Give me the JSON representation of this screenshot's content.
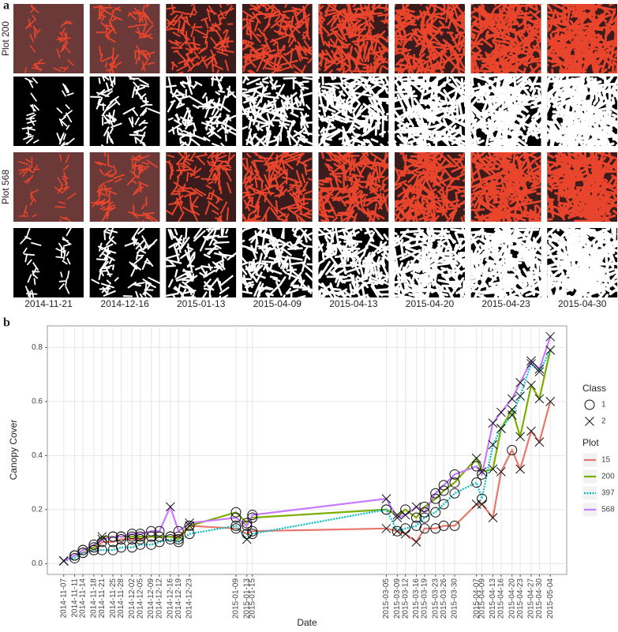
{
  "panel_a": {
    "label": "a",
    "rows": [
      "Plot 200",
      "Plot 568"
    ],
    "dates": [
      "2014-11-21",
      "2014-12-16",
      "2015-01-13",
      "2015-04-09",
      "2015-04-13",
      "2015-04-20",
      "2015-04-23",
      "2015-04-30"
    ]
  },
  "chart_data": {
    "type": "line",
    "panel_label": "b",
    "x_label": "Date",
    "y_label": "Canopy Cover",
    "x": [
      "2014-11-07",
      "2014-11-11",
      "2014-11-14",
      "2014-11-18",
      "2014-11-21",
      "2014-11-25",
      "2014-11-28",
      "2014-12-02",
      "2014-12-05",
      "2014-12-09",
      "2014-12-12",
      "2014-12-16",
      "2014-12-19",
      "2014-12-23",
      "2015-01-09",
      "2015-01-13",
      "2015-01-15",
      "2015-03-05",
      "2015-03-09",
      "2015-03-12",
      "2015-03-16",
      "2015-03-19",
      "2015-03-23",
      "2015-03-26",
      "2015-03-30",
      "2015-04-07",
      "2015-04-09",
      "2015-04-13",
      "2015-04-16",
      "2015-04-20",
      "2015-04-23",
      "2015-04-27",
      "2015-04-30",
      "2015-05-04"
    ],
    "xlim": [
      "2014-11-01",
      "2015-05-10"
    ],
    "ylim": [
      -0.04,
      0.88
    ],
    "yticks": [
      {
        "value": 0,
        "label": "0.0"
      },
      0.2,
      0.4,
      0.6,
      0.8
    ],
    "grid": true,
    "class_legend": {
      "title": "Class",
      "items": [
        1,
        2
      ]
    },
    "legend_title": "Plot",
    "series": [
      {
        "name": "15",
        "color": "#e8766d",
        "dash": false,
        "values": [
          0.01,
          0.03,
          0.04,
          0.05,
          0.08,
          0.08,
          0.09,
          0.09,
          0.09,
          0.1,
          0.1,
          0.1,
          0.1,
          0.14,
          0.13,
          0.11,
          0.12,
          0.13,
          0.12,
          0.11,
          0.08,
          0.13,
          0.13,
          0.14,
          0.14,
          0.22,
          0.22,
          0.17,
          0.34,
          0.42,
          0.35,
          0.49,
          0.45,
          0.6
        ],
        "classes": [
          2,
          1,
          1,
          1,
          1,
          1,
          1,
          1,
          1,
          1,
          1,
          1,
          1,
          1,
          1,
          1,
          1,
          2,
          2,
          2,
          2,
          1,
          1,
          1,
          1,
          2,
          2,
          2,
          2,
          1,
          2,
          2,
          2,
          2
        ]
      },
      {
        "name": "200",
        "color": "#7cae00",
        "dash": false,
        "values": [
          0.01,
          0.03,
          0.05,
          0.06,
          0.1,
          0.1,
          0.1,
          0.1,
          0.1,
          0.1,
          0.1,
          0.1,
          0.09,
          0.14,
          0.19,
          0.15,
          0.17,
          0.2,
          0.18,
          0.2,
          0.17,
          0.21,
          0.24,
          0.27,
          0.3,
          0.39,
          0.34,
          0.35,
          0.5,
          0.57,
          0.47,
          0.66,
          0.61,
          0.79
        ],
        "classes": [
          2,
          1,
          1,
          1,
          2,
          1,
          1,
          1,
          1,
          1,
          1,
          1,
          1,
          2,
          1,
          1,
          1,
          1,
          2,
          1,
          1,
          1,
          1,
          1,
          1,
          2,
          2,
          2,
          2,
          2,
          2,
          2,
          2,
          2
        ]
      },
      {
        "name": "397",
        "color": "#00bfc4",
        "dash": true,
        "values": [
          0.01,
          0.02,
          0.04,
          0.05,
          0.05,
          0.05,
          0.06,
          0.06,
          0.07,
          0.07,
          0.08,
          0.09,
          0.08,
          0.11,
          0.14,
          0.09,
          0.11,
          0.2,
          0.12,
          0.13,
          0.14,
          0.17,
          0.19,
          0.22,
          0.26,
          0.3,
          0.24,
          0.44,
          0.5,
          0.55,
          0.62,
          0.74,
          0.71,
          0.79
        ],
        "classes": [
          2,
          1,
          1,
          1,
          1,
          1,
          1,
          1,
          1,
          1,
          1,
          1,
          1,
          1,
          1,
          2,
          1,
          1,
          1,
          1,
          1,
          1,
          1,
          1,
          1,
          1,
          1,
          2,
          2,
          2,
          2,
          2,
          2,
          2
        ]
      },
      {
        "name": "568",
        "color": "#c77cff",
        "dash": false,
        "values": [
          0.01,
          0.03,
          0.05,
          0.07,
          0.09,
          0.1,
          0.1,
          0.11,
          0.11,
          0.12,
          0.12,
          0.21,
          0.12,
          0.15,
          0.17,
          0.14,
          0.18,
          0.24,
          0.17,
          0.18,
          0.21,
          0.19,
          0.26,
          0.29,
          0.33,
          0.36,
          0.33,
          0.52,
          0.56,
          0.61,
          0.67,
          0.75,
          0.72,
          0.84
        ],
        "classes": [
          2,
          1,
          1,
          1,
          2,
          1,
          1,
          1,
          1,
          1,
          1,
          2,
          1,
          2,
          1,
          1,
          1,
          2,
          2,
          2,
          2,
          1,
          1,
          1,
          1,
          1,
          1,
          2,
          2,
          2,
          2,
          2,
          2,
          2
        ]
      }
    ]
  }
}
